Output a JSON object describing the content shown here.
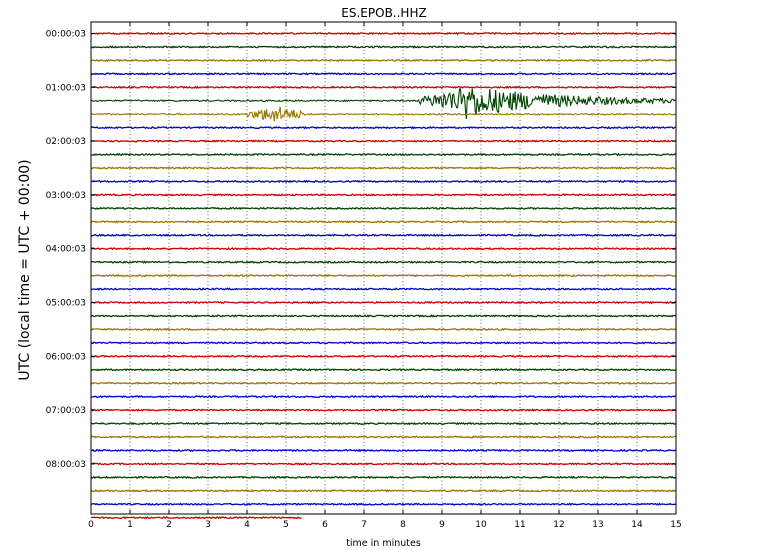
{
  "chart_data": {
    "type": "line",
    "title": "ES.EPOB..HHZ",
    "xlabel": "time in minutes",
    "ylabel": "UTC (local time = UTC + 00:00)",
    "xlim": [
      0,
      15
    ],
    "x_ticks": [
      0,
      1,
      2,
      3,
      4,
      5,
      6,
      7,
      8,
      9,
      10,
      11,
      12,
      13,
      14,
      15
    ],
    "y_tick_labels": [
      "00:00:03",
      "01:00:03",
      "02:00:03",
      "03:00:03",
      "04:00:03",
      "05:00:03",
      "06:00:03",
      "07:00:03",
      "08:00:03"
    ],
    "traces_per_hour": 4,
    "trace_interval_minutes": 15,
    "trace_count": 37,
    "trace_colors": [
      "#cc0000",
      "#004400",
      "#997700",
      "#0000cc"
    ],
    "first_trace_color_index": 0,
    "grid": {
      "x": true,
      "y": false,
      "style": "dotted"
    },
    "last_trace_end_minute": 5.4,
    "events": [
      {
        "trace_index": 6,
        "start_minute": 4.0,
        "end_minute": 5.5,
        "peak_amplitude": "moderate"
      },
      {
        "trace_index": 5,
        "start_minute": 8.4,
        "end_minute": 15,
        "peak_minute": 9.6,
        "peak_amplitude": "large"
      }
    ]
  }
}
